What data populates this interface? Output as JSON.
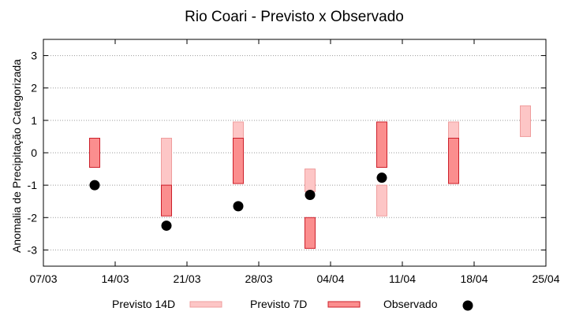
{
  "chart_data": {
    "type": "bar",
    "title": "Rio Coari - Previsto x Observado",
    "ylabel": "Anomalia de Precipitação Categorizada",
    "xlabel": "",
    "ylim": [
      -3.5,
      3.5
    ],
    "yticks": [
      -3,
      -2,
      -1,
      0,
      1,
      2,
      3
    ],
    "ytick_labels": [
      "-3",
      "-2",
      "-1",
      "0",
      "1",
      "2",
      "3"
    ],
    "xlim": [
      "2024-03-07",
      "2024-04-25"
    ],
    "xticks": [
      "2024-03-07",
      "2024-03-14",
      "2024-03-21",
      "2024-03-28",
      "2024-04-04",
      "2024-04-11",
      "2024-04-18",
      "2024-04-25"
    ],
    "xtick_labels": [
      "07/03",
      "14/03",
      "21/03",
      "28/03",
      "04/04",
      "11/04",
      "18/04",
      "25/04"
    ],
    "grid": true,
    "legend_position": "bottom",
    "colors": {
      "previsto_14d_fill": "#fdc6c6",
      "previsto_14d_edge": "#ef9d9d",
      "previsto_7d_fill": "#fb8e8e",
      "previsto_7d_edge": "#cc1f2a",
      "observado": "#000000",
      "grid": "#9a9a9a"
    },
    "series": [
      {
        "name": "Previsto 14D",
        "kind": "range",
        "points": [
          {
            "x": "2024-03-19",
            "low": -1.0,
            "high": 0.45
          },
          {
            "x": "2024-03-26",
            "low": 0.4,
            "high": 0.95
          },
          {
            "x": "2024-04-02",
            "low": -1.2,
            "high": -0.5
          },
          {
            "x": "2024-04-09",
            "low": -1.95,
            "high": -1.0
          },
          {
            "x": "2024-04-16",
            "low": 0.4,
            "high": 0.95
          },
          {
            "x": "2024-04-23",
            "low": 0.5,
            "high": 1.45
          }
        ]
      },
      {
        "name": "Previsto 7D",
        "kind": "range",
        "points": [
          {
            "x": "2024-03-12",
            "low": -0.45,
            "high": 0.45
          },
          {
            "x": "2024-03-19",
            "low": -1.95,
            "high": -1.0
          },
          {
            "x": "2024-03-26",
            "low": -0.95,
            "high": 0.45
          },
          {
            "x": "2024-04-02",
            "low": -2.95,
            "high": -2.0
          },
          {
            "x": "2024-04-09",
            "low": -0.45,
            "high": 0.95
          },
          {
            "x": "2024-04-16",
            "low": -0.95,
            "high": 0.45
          }
        ]
      },
      {
        "name": "Observado",
        "kind": "point",
        "points": [
          {
            "x": "2024-03-12",
            "y": -1.0
          },
          {
            "x": "2024-03-19",
            "y": -2.25
          },
          {
            "x": "2024-03-26",
            "y": -1.65
          },
          {
            "x": "2024-04-02",
            "y": -1.3
          },
          {
            "x": "2024-04-09",
            "y": -0.77
          }
        ]
      }
    ]
  }
}
